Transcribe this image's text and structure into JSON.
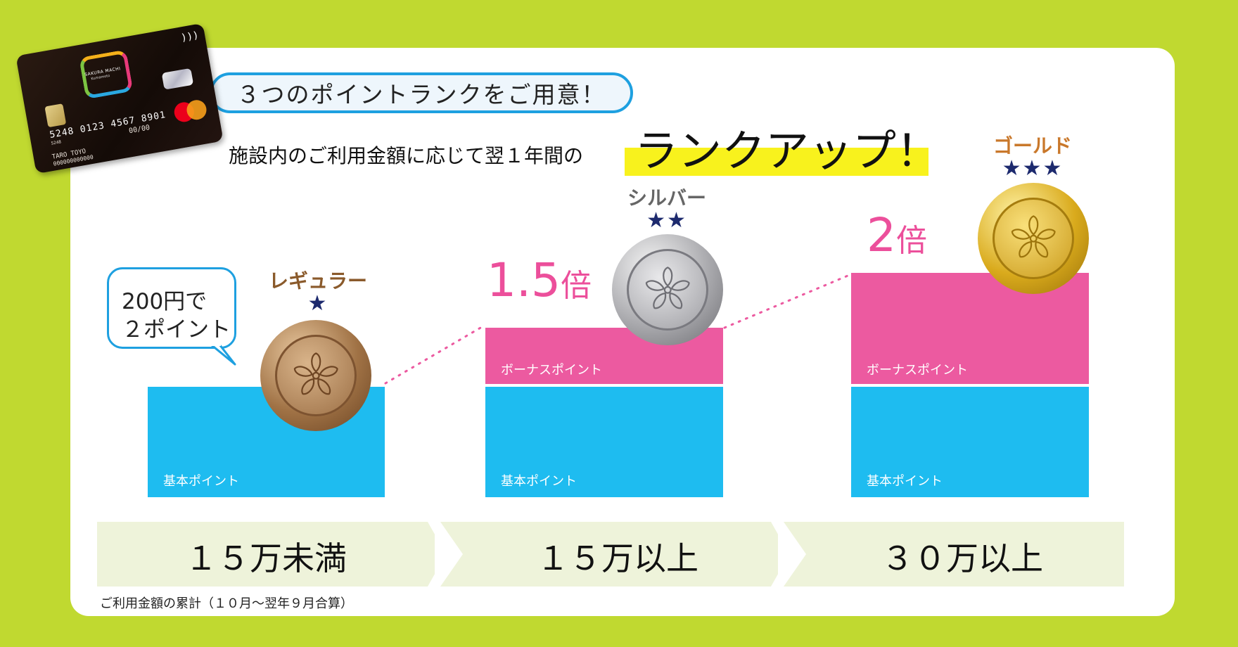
{
  "card": {
    "brand": "SAKURA MACHI",
    "brand_sub": "Kumamoto",
    "number": "5248 0123 4567 8901",
    "small": "5248",
    "expiry_label": "MONTH / YEAR",
    "expiry": "00/00",
    "holder": "TARO TOYO",
    "account": "000000000000",
    "colors": {
      "mastercard_red": "#eb001b",
      "mastercard_orange": "#f79e1b"
    }
  },
  "headline": "３つのポイントランクをご用意！",
  "lead": "施設内のご利用金額に応じて翌１年間の",
  "highlight": "ランクアップ！",
  "bubble": {
    "line1": "200円で",
    "line2": "２ポイント"
  },
  "bar_labels": {
    "base": "基本ポイント",
    "bonus": "ボーナスポイント"
  },
  "ranks": [
    {
      "name": "レギュラー",
      "stars": "★",
      "multiplier_num": "",
      "multiplier_suffix": "",
      "coin": "bronze",
      "name_color": "#8a5a2b",
      "threshold": "１５万未満"
    },
    {
      "name": "シルバー",
      "stars": "★★",
      "multiplier_num": "1.5",
      "multiplier_suffix": "倍",
      "coin": "silver",
      "name_color": "#666666",
      "threshold": "１５万以上"
    },
    {
      "name": "ゴールド",
      "stars": "★★★",
      "multiplier_num": "2",
      "multiplier_suffix": "倍",
      "coin": "gold",
      "name_color": "#c9782b",
      "threshold": "３０万以上"
    }
  ],
  "footnote": "ご利用金額の累計（１０月～翌年９月合算）",
  "colors": {
    "background": "#c0d930",
    "base_bar": "#1ebcf0",
    "bonus_bar": "#ec5aa0",
    "accent_blue": "#1ea0e0",
    "highlight_yellow": "#f8f21d",
    "multiplier_pink": "#ec4f9b",
    "star_navy": "#1d2a6e"
  },
  "icons": {
    "coin_emblem": "sakura-flower-icon",
    "nfc": "contactless-icon"
  }
}
